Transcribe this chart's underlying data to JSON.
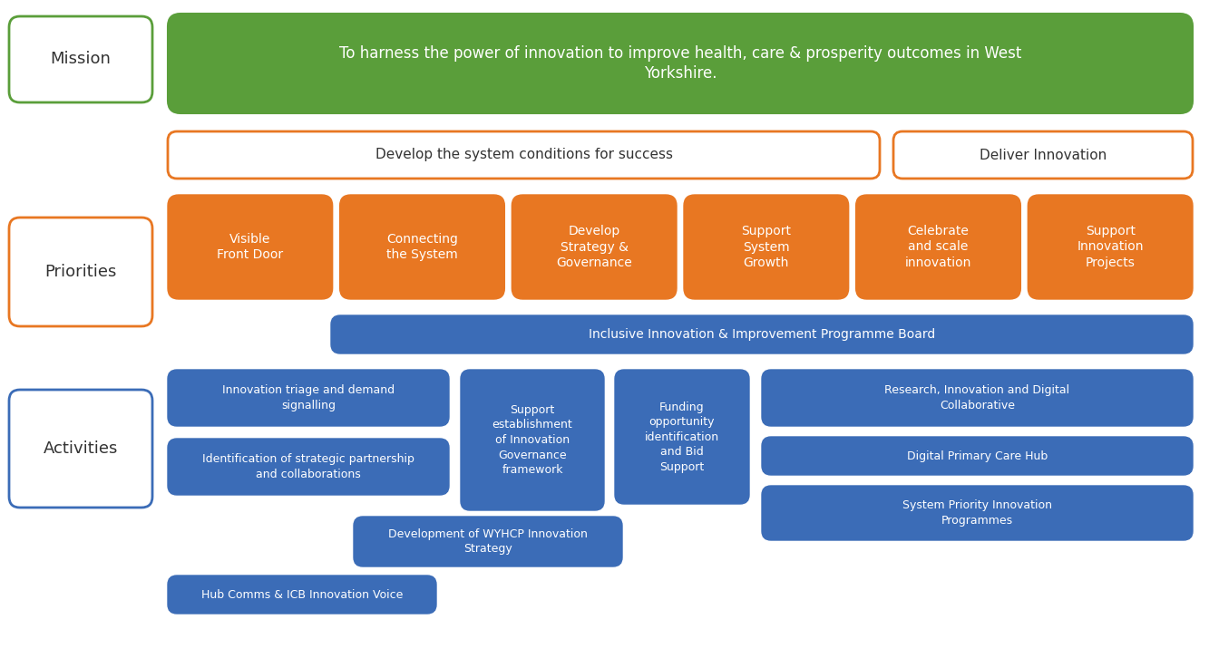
{
  "background_color": "#ffffff",
  "green_color": "#5a9e3a",
  "orange_color": "#e87722",
  "blue_color": "#3b6cb7",
  "text_dark": "#333333",
  "mission_text": "To harness the power of innovation to improve health, care & prosperity outcomes in West\nYorkshire.",
  "mission_label": "Mission",
  "priorities_label": "Priorities",
  "activities_label": "Activities",
  "develop_system_text": "Develop the system conditions for success",
  "deliver_innovation_text": "Deliver Innovation",
  "programme_board_text": "Inclusive Innovation & Improvement Programme Board",
  "priority_boxes": [
    "Visible\nFront Door",
    "Connecting\nthe System",
    "Develop\nStrategy &\nGovernance",
    "Support\nSystem\nGrowth",
    "Celebrate\nand scale\ninnovation",
    "Support\nInnovation\nProjects"
  ],
  "activity_left_top": "Innovation triage and demand\nsignalling",
  "activity_left_bot": "Identification of strategic partnership\nand collaborations",
  "activity_middle_tall": "Support\nestablishment\nof Innovation\nGovernance\nframework",
  "activity_funding": "Funding\nopportunity\nidentification\nand Bid\nSupport",
  "activity_right_1": "Research, Innovation and Digital\nCollaborative",
  "activity_right_2": "Digital Primary Care Hub",
  "activity_right_3": "System Priority Innovation\nProgrammes",
  "activity_bottom_1": "Development of WYHCP Innovation\nStrategy",
  "activity_bottom_2": "Hub Comms & ICB Innovation Voice"
}
